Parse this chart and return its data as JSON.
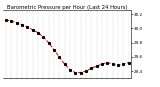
{
  "title": "Barometric Pressure per Hour (Last 24 Hours)",
  "hours": [
    0,
    1,
    2,
    3,
    4,
    5,
    6,
    7,
    8,
    9,
    10,
    11,
    12,
    13,
    14,
    15,
    16,
    17,
    18,
    19,
    20,
    21,
    22,
    23
  ],
  "pressure": [
    30.12,
    30.1,
    30.08,
    30.05,
    30.02,
    29.98,
    29.94,
    29.88,
    29.8,
    29.7,
    29.6,
    29.5,
    29.42,
    29.38,
    29.38,
    29.4,
    29.44,
    29.47,
    29.5,
    29.52,
    29.5,
    29.48,
    29.5,
    29.52
  ],
  "ylim": [
    29.3,
    30.25
  ],
  "ytick_vals": [
    29.4,
    29.6,
    29.8,
    30.0,
    30.2
  ],
  "ytick_labels": [
    "29.4",
    "29.6",
    "29.8",
    "30.0",
    "30.2"
  ],
  "line_color": "#dd0000",
  "marker_color": "#000000",
  "bg_color": "#ffffff",
  "grid_color": "#888888",
  "title_color": "#000000",
  "title_fontsize": 3.8,
  "tick_fontsize": 3.0,
  "xlim": [
    -0.5,
    23.5
  ]
}
